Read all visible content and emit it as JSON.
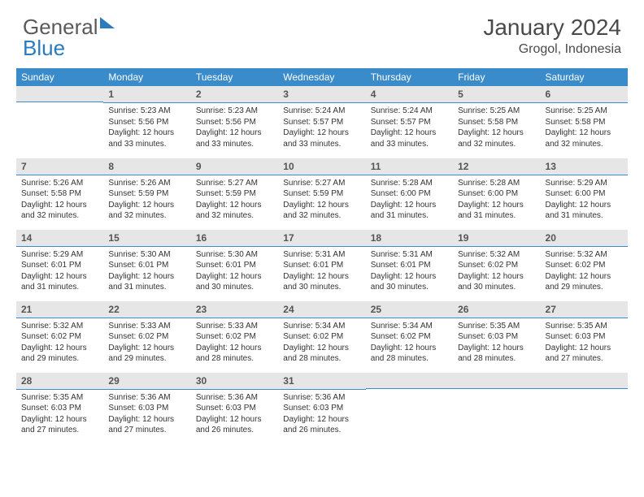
{
  "brand": {
    "part1": "General",
    "part2": "Blue"
  },
  "title": "January 2024",
  "location": "Grogol, Indonesia",
  "weekdays": [
    "Sunday",
    "Monday",
    "Tuesday",
    "Wednesday",
    "Thursday",
    "Friday",
    "Saturday"
  ],
  "colors": {
    "header_bg": "#3a8bca",
    "header_text": "#ffffff",
    "daynum_bg": "#e6e6e6",
    "daynum_text": "#555555",
    "border": "#3a8bca",
    "body_text": "#333333",
    "brand_gray": "#5a5a5a",
    "brand_blue": "#2b7bbf"
  },
  "typography": {
    "month_title_pt": 28,
    "location_pt": 16,
    "weekday_pt": 12,
    "daynum_pt": 12,
    "body_pt": 10
  },
  "layout": {
    "columns": 7,
    "rows": 5,
    "first_day_column": 1
  },
  "days": [
    {
      "n": 1,
      "sunrise": "5:23 AM",
      "sunset": "5:56 PM",
      "daylight": "12 hours and 33 minutes."
    },
    {
      "n": 2,
      "sunrise": "5:23 AM",
      "sunset": "5:56 PM",
      "daylight": "12 hours and 33 minutes."
    },
    {
      "n": 3,
      "sunrise": "5:24 AM",
      "sunset": "5:57 PM",
      "daylight": "12 hours and 33 minutes."
    },
    {
      "n": 4,
      "sunrise": "5:24 AM",
      "sunset": "5:57 PM",
      "daylight": "12 hours and 33 minutes."
    },
    {
      "n": 5,
      "sunrise": "5:25 AM",
      "sunset": "5:58 PM",
      "daylight": "12 hours and 32 minutes."
    },
    {
      "n": 6,
      "sunrise": "5:25 AM",
      "sunset": "5:58 PM",
      "daylight": "12 hours and 32 minutes."
    },
    {
      "n": 7,
      "sunrise": "5:26 AM",
      "sunset": "5:58 PM",
      "daylight": "12 hours and 32 minutes."
    },
    {
      "n": 8,
      "sunrise": "5:26 AM",
      "sunset": "5:59 PM",
      "daylight": "12 hours and 32 minutes."
    },
    {
      "n": 9,
      "sunrise": "5:27 AM",
      "sunset": "5:59 PM",
      "daylight": "12 hours and 32 minutes."
    },
    {
      "n": 10,
      "sunrise": "5:27 AM",
      "sunset": "5:59 PM",
      "daylight": "12 hours and 32 minutes."
    },
    {
      "n": 11,
      "sunrise": "5:28 AM",
      "sunset": "6:00 PM",
      "daylight": "12 hours and 31 minutes."
    },
    {
      "n": 12,
      "sunrise": "5:28 AM",
      "sunset": "6:00 PM",
      "daylight": "12 hours and 31 minutes."
    },
    {
      "n": 13,
      "sunrise": "5:29 AM",
      "sunset": "6:00 PM",
      "daylight": "12 hours and 31 minutes."
    },
    {
      "n": 14,
      "sunrise": "5:29 AM",
      "sunset": "6:01 PM",
      "daylight": "12 hours and 31 minutes."
    },
    {
      "n": 15,
      "sunrise": "5:30 AM",
      "sunset": "6:01 PM",
      "daylight": "12 hours and 31 minutes."
    },
    {
      "n": 16,
      "sunrise": "5:30 AM",
      "sunset": "6:01 PM",
      "daylight": "12 hours and 30 minutes."
    },
    {
      "n": 17,
      "sunrise": "5:31 AM",
      "sunset": "6:01 PM",
      "daylight": "12 hours and 30 minutes."
    },
    {
      "n": 18,
      "sunrise": "5:31 AM",
      "sunset": "6:01 PM",
      "daylight": "12 hours and 30 minutes."
    },
    {
      "n": 19,
      "sunrise": "5:32 AM",
      "sunset": "6:02 PM",
      "daylight": "12 hours and 30 minutes."
    },
    {
      "n": 20,
      "sunrise": "5:32 AM",
      "sunset": "6:02 PM",
      "daylight": "12 hours and 29 minutes."
    },
    {
      "n": 21,
      "sunrise": "5:32 AM",
      "sunset": "6:02 PM",
      "daylight": "12 hours and 29 minutes."
    },
    {
      "n": 22,
      "sunrise": "5:33 AM",
      "sunset": "6:02 PM",
      "daylight": "12 hours and 29 minutes."
    },
    {
      "n": 23,
      "sunrise": "5:33 AM",
      "sunset": "6:02 PM",
      "daylight": "12 hours and 28 minutes."
    },
    {
      "n": 24,
      "sunrise": "5:34 AM",
      "sunset": "6:02 PM",
      "daylight": "12 hours and 28 minutes."
    },
    {
      "n": 25,
      "sunrise": "5:34 AM",
      "sunset": "6:02 PM",
      "daylight": "12 hours and 28 minutes."
    },
    {
      "n": 26,
      "sunrise": "5:35 AM",
      "sunset": "6:03 PM",
      "daylight": "12 hours and 28 minutes."
    },
    {
      "n": 27,
      "sunrise": "5:35 AM",
      "sunset": "6:03 PM",
      "daylight": "12 hours and 27 minutes."
    },
    {
      "n": 28,
      "sunrise": "5:35 AM",
      "sunset": "6:03 PM",
      "daylight": "12 hours and 27 minutes."
    },
    {
      "n": 29,
      "sunrise": "5:36 AM",
      "sunset": "6:03 PM",
      "daylight": "12 hours and 27 minutes."
    },
    {
      "n": 30,
      "sunrise": "5:36 AM",
      "sunset": "6:03 PM",
      "daylight": "12 hours and 26 minutes."
    },
    {
      "n": 31,
      "sunrise": "5:36 AM",
      "sunset": "6:03 PM",
      "daylight": "12 hours and 26 minutes."
    }
  ],
  "labels": {
    "sunrise": "Sunrise:",
    "sunset": "Sunset:",
    "daylight": "Daylight:"
  }
}
